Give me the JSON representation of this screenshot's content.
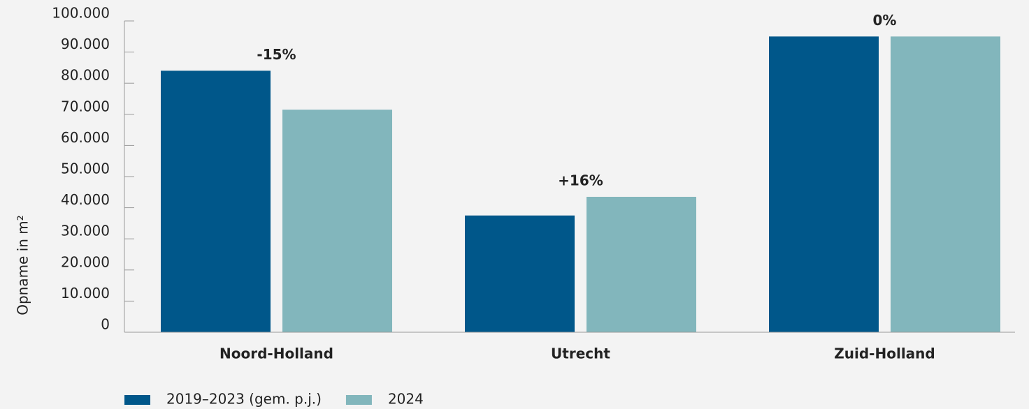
{
  "chart_data": {
    "type": "bar",
    "ylabel": "Opname in m²",
    "categories": [
      "Noord-Holland",
      "Utrecht",
      "Zuid-Holland"
    ],
    "series": [
      {
        "name": "2019–2023 (gem. p.j.)",
        "color": "#00578a",
        "values": [
          84000,
          37500,
          95000
        ]
      },
      {
        "name": "2024",
        "color": "#82b6bc",
        "values": [
          71500,
          43500,
          95000
        ]
      }
    ],
    "annotations": [
      "-15%",
      "+16%",
      "0%"
    ],
    "ylim": [
      0,
      100000
    ],
    "yticks": [
      0,
      {
        "value": 10000,
        "label": "10.000"
      },
      {
        "value": 20000,
        "label": "20.000"
      },
      {
        "value": 30000,
        "label": "30.000"
      },
      {
        "value": 40000,
        "label": "40.000"
      },
      {
        "value": 50000,
        "label": "50.000"
      },
      {
        "value": 60000,
        "label": "60.000"
      },
      {
        "value": 70000,
        "label": "70.000"
      },
      {
        "value": 80000,
        "label": "80.000"
      },
      {
        "value": 90000,
        "label": "90.000"
      },
      {
        "value": 100000,
        "label": "100.000"
      }
    ],
    "legend": "bottom-left"
  }
}
